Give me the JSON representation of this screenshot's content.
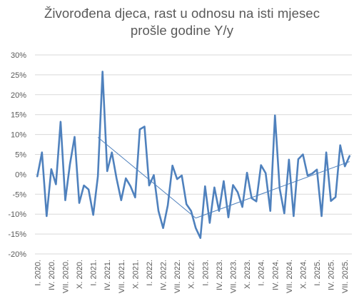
{
  "chart_data": {
    "type": "line",
    "title_line1": "Živorođena djeca, rast u odnosu na isti mjesec",
    "title_line2": "prošle godine Y/y",
    "ylim": [
      -0.2,
      0.3
    ],
    "y_ticks": [
      {
        "value": 0.3,
        "label": "30%"
      },
      {
        "value": 0.25,
        "label": "25%"
      },
      {
        "value": 0.2,
        "label": "20%"
      },
      {
        "value": 0.15,
        "label": "15%"
      },
      {
        "value": 0.1,
        "label": "10%"
      },
      {
        "value": 0.05,
        "label": "5%"
      },
      {
        "value": 0.0,
        "label": "0%"
      },
      {
        "value": -0.05,
        "label": "-5%"
      },
      {
        "value": -0.1,
        "label": "-10%"
      },
      {
        "value": -0.15,
        "label": "-15%"
      },
      {
        "value": -0.2,
        "label": "-20%"
      }
    ],
    "x_tick_labels": [
      {
        "index": 0,
        "label": "I. 2020."
      },
      {
        "index": 3,
        "label": "IV. 2020."
      },
      {
        "index": 6,
        "label": "VII. 2020."
      },
      {
        "index": 9,
        "label": "X. 2020."
      },
      {
        "index": 12,
        "label": "I. 2021."
      },
      {
        "index": 15,
        "label": "IV. 2021."
      },
      {
        "index": 18,
        "label": "VII. 2021."
      },
      {
        "index": 21,
        "label": "X. 2021."
      },
      {
        "index": 24,
        "label": "I. 2022."
      },
      {
        "index": 27,
        "label": "IV. 2022."
      },
      {
        "index": 30,
        "label": "VII. 2022."
      },
      {
        "index": 33,
        "label": "X. 2022."
      },
      {
        "index": 36,
        "label": "I. 2023."
      },
      {
        "index": 39,
        "label": "IV. 2023."
      },
      {
        "index": 42,
        "label": "VII. 2023."
      },
      {
        "index": 45,
        "label": "X. 2023."
      },
      {
        "index": 48,
        "label": "I. 2024."
      },
      {
        "index": 51,
        "label": "IV. 2024."
      },
      {
        "index": 54,
        "label": "VII. 2024."
      },
      {
        "index": 57,
        "label": "X. 2024."
      },
      {
        "index": 60,
        "label": "I. 2025."
      },
      {
        "index": 63,
        "label": "IV. 2025."
      },
      {
        "index": 66,
        "label": "VII. 2025."
      }
    ],
    "series": [
      {
        "color": "#4F81BD",
        "values": [
          -0.005,
          0.055,
          -0.105,
          0.013,
          -0.025,
          0.132,
          -0.065,
          0.025,
          0.094,
          -0.072,
          -0.028,
          -0.038,
          -0.102,
          -0.005,
          0.258,
          0.008,
          0.055,
          -0.01,
          -0.065,
          -0.01,
          -0.03,
          -0.058,
          0.113,
          0.12,
          -0.028,
          -0.002,
          -0.092,
          -0.135,
          -0.078,
          0.022,
          -0.012,
          -0.003,
          -0.075,
          -0.092,
          -0.135,
          -0.16,
          -0.03,
          -0.122,
          -0.033,
          -0.092,
          -0.017,
          -0.108,
          -0.027,
          -0.045,
          -0.082,
          0.004,
          -0.06,
          -0.068,
          0.023,
          0.003,
          -0.092,
          0.148,
          -0.035,
          -0.098,
          0.037,
          -0.105,
          0.038,
          0.05,
          -0.003,
          0.002,
          0.012,
          -0.105,
          0.055,
          -0.067,
          -0.057,
          0.073,
          0.02,
          0.046
        ]
      }
    ],
    "trendlines": [
      {
        "color": "#4F81BD",
        "points": [
          [
            13,
            0.093
          ],
          [
            34,
            -0.11
          ]
        ]
      },
      {
        "color": "#4F81BD",
        "points": [
          [
            34,
            -0.11
          ],
          [
            67,
            0.032
          ]
        ]
      }
    ]
  }
}
